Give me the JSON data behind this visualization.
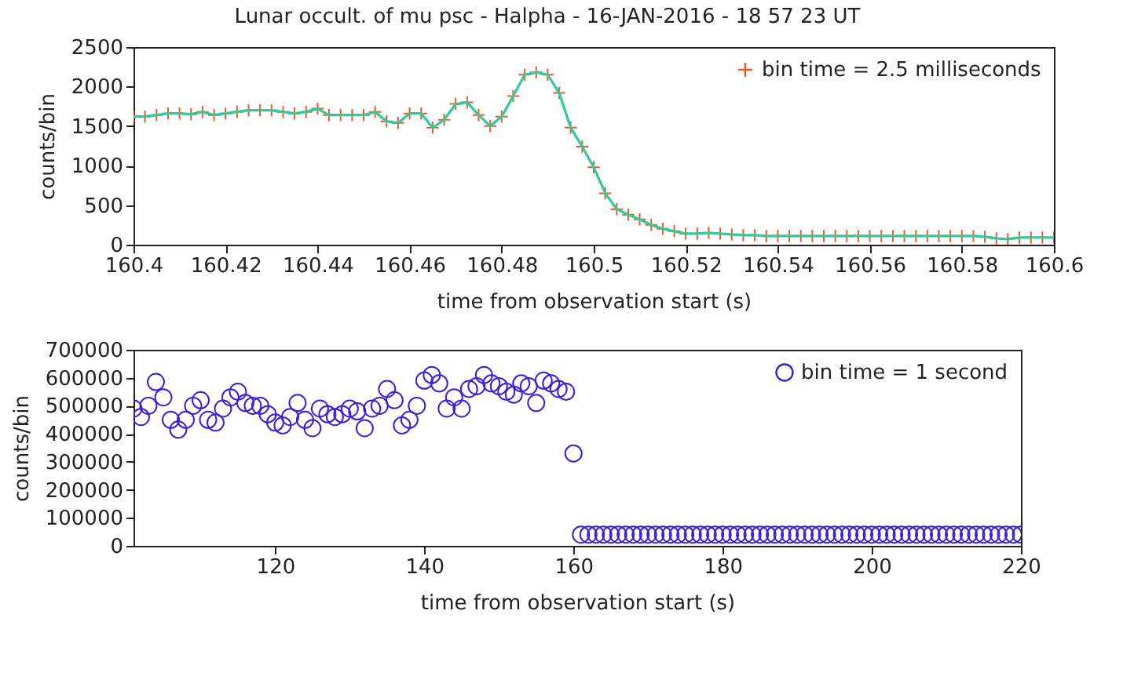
{
  "chart_data": [
    {
      "type": "scatter",
      "title": "Lunar occult. of mu psc - Halpha - 16-JAN-2016 - 18 57 23 UT",
      "xlabel": "time from observation start (s)",
      "ylabel": "counts/bin",
      "xlim": [
        160.4,
        160.6
      ],
      "xticks": [
        160.4,
        160.42,
        160.44,
        160.46,
        160.48,
        160.5,
        160.52,
        160.54,
        160.56,
        160.58,
        160.6
      ],
      "ylim": [
        0,
        2500
      ],
      "yticks": [
        0,
        500,
        1000,
        1500,
        2000,
        2500
      ],
      "legend": "top right",
      "series": [
        {
          "name": "bin time = 2.5 milliseconds",
          "type": "scatter",
          "marker": "cross",
          "color": "#f05a28",
          "x": [
            160.4,
            160.4025,
            160.405,
            160.4075,
            160.41,
            160.4125,
            160.415,
            160.4175,
            160.42,
            160.4225,
            160.425,
            160.4275,
            160.43,
            160.4325,
            160.435,
            160.4375,
            160.44,
            160.4425,
            160.445,
            160.4475,
            160.45,
            160.4525,
            160.455,
            160.4575,
            160.46,
            160.4625,
            160.465,
            160.4675,
            160.47,
            160.4725,
            160.475,
            160.4775,
            160.48,
            160.4825,
            160.485,
            160.4875,
            160.49,
            160.4925,
            160.495,
            160.4975,
            160.5,
            160.5025,
            160.505,
            160.5075,
            160.51,
            160.5125,
            160.515,
            160.5175,
            160.52,
            160.5225,
            160.525,
            160.5275,
            160.53,
            160.5325,
            160.535,
            160.5375,
            160.54,
            160.5425,
            160.545,
            160.5475,
            160.55,
            160.5525,
            160.555,
            160.5575,
            160.56,
            160.5625,
            160.565,
            160.5675,
            160.57,
            160.5725,
            160.575,
            160.5775,
            160.58,
            160.5825,
            160.585,
            160.5875,
            160.59,
            160.5925,
            160.595,
            160.5975,
            160.6
          ],
          "values": [
            1620,
            1620,
            1640,
            1660,
            1660,
            1650,
            1680,
            1640,
            1660,
            1680,
            1700,
            1700,
            1700,
            1680,
            1660,
            1680,
            1720,
            1640,
            1640,
            1640,
            1640,
            1680,
            1560,
            1540,
            1660,
            1660,
            1480,
            1580,
            1780,
            1800,
            1640,
            1500,
            1620,
            1880,
            2150,
            2180,
            2150,
            1920,
            1480,
            1240,
            980,
            650,
            450,
            380,
            320,
            250,
            200,
            170,
            140,
            140,
            150,
            140,
            130,
            120,
            120,
            110,
            110,
            110,
            110,
            110,
            110,
            110,
            110,
            110,
            110,
            110,
            110,
            110,
            110,
            110,
            110,
            110,
            110,
            110,
            100,
            80,
            70,
            90,
            90,
            90,
            90
          ]
        },
        {
          "type": "line",
          "marker": "none",
          "color": "#2ecc9a",
          "x": [
            160.4,
            160.4025,
            160.405,
            160.4075,
            160.41,
            160.4125,
            160.415,
            160.4175,
            160.42,
            160.4225,
            160.425,
            160.4275,
            160.43,
            160.4325,
            160.435,
            160.4375,
            160.44,
            160.4425,
            160.445,
            160.4475,
            160.45,
            160.4525,
            160.455,
            160.4575,
            160.46,
            160.4625,
            160.465,
            160.4675,
            160.47,
            160.4725,
            160.475,
            160.4775,
            160.48,
            160.4825,
            160.485,
            160.4875,
            160.49,
            160.4925,
            160.495,
            160.4975,
            160.5,
            160.5025,
            160.505,
            160.5075,
            160.51,
            160.5125,
            160.515,
            160.5175,
            160.52,
            160.5225,
            160.525,
            160.5275,
            160.53,
            160.5325,
            160.535,
            160.5375,
            160.54,
            160.5425,
            160.545,
            160.5475,
            160.55,
            160.5525,
            160.555,
            160.5575,
            160.56,
            160.5625,
            160.565,
            160.5675,
            160.57,
            160.5725,
            160.575,
            160.5775,
            160.58,
            160.5825,
            160.585,
            160.5875,
            160.59,
            160.5925,
            160.595,
            160.5975,
            160.6
          ],
          "values": [
            1620,
            1620,
            1640,
            1660,
            1660,
            1650,
            1680,
            1640,
            1660,
            1680,
            1700,
            1700,
            1700,
            1680,
            1660,
            1680,
            1720,
            1640,
            1640,
            1640,
            1640,
            1680,
            1560,
            1540,
            1660,
            1660,
            1480,
            1580,
            1780,
            1800,
            1640,
            1500,
            1620,
            1880,
            2150,
            2180,
            2150,
            1920,
            1480,
            1240,
            980,
            650,
            450,
            380,
            320,
            250,
            200,
            170,
            140,
            140,
            150,
            140,
            130,
            120,
            120,
            110,
            110,
            110,
            110,
            110,
            110,
            110,
            110,
            110,
            110,
            110,
            110,
            110,
            110,
            110,
            110,
            110,
            110,
            110,
            100,
            80,
            70,
            90,
            90,
            90,
            90
          ]
        }
      ]
    },
    {
      "type": "scatter",
      "xlabel": "time from observation start (s)",
      "ylabel": "counts/bin",
      "xlim": [
        101,
        220
      ],
      "xticks": [
        120,
        140,
        160,
        180,
        200,
        220
      ],
      "ylim": [
        0,
        700000
      ],
      "yticks": [
        0,
        100000,
        200000,
        300000,
        400000,
        500000,
        600000,
        700000
      ],
      "marker": "circle",
      "legend": "top right",
      "series": [
        {
          "name": "bin time = 1 second",
          "type": "scatter",
          "color": "#3b1fe0",
          "x": [
            101,
            102,
            103,
            104,
            105,
            106,
            107,
            108,
            109,
            110,
            111,
            112,
            113,
            114,
            115,
            116,
            117,
            118,
            119,
            120,
            121,
            122,
            123,
            124,
            125,
            126,
            127,
            128,
            129,
            130,
            131,
            132,
            133,
            134,
            135,
            136,
            137,
            138,
            139,
            140,
            141,
            142,
            143,
            144,
            145,
            146,
            147,
            148,
            149,
            150,
            151,
            152,
            153,
            154,
            155,
            156,
            157,
            158,
            159,
            160,
            161,
            162,
            163,
            164,
            165,
            166,
            167,
            168,
            169,
            170,
            171,
            172,
            173,
            174,
            175,
            176,
            177,
            178,
            179,
            180,
            181,
            182,
            183,
            184,
            185,
            186,
            187,
            188,
            189,
            190,
            191,
            192,
            193,
            194,
            195,
            196,
            197,
            198,
            199,
            200,
            201,
            202,
            203,
            204,
            205,
            206,
            207,
            208,
            209,
            210,
            211,
            212,
            213,
            214,
            215,
            216,
            217,
            218,
            219,
            220
          ],
          "values": [
            490000,
            460000,
            500000,
            585000,
            530000,
            450000,
            415000,
            450000,
            500000,
            520000,
            450000,
            440000,
            490000,
            530000,
            550000,
            510000,
            500000,
            500000,
            470000,
            440000,
            430000,
            460000,
            510000,
            450000,
            420000,
            490000,
            470000,
            460000,
            470000,
            490000,
            480000,
            420000,
            490000,
            500000,
            560000,
            520000,
            430000,
            450000,
            500000,
            590000,
            610000,
            580000,
            490000,
            530000,
            490000,
            560000,
            570000,
            610000,
            580000,
            570000,
            550000,
            540000,
            580000,
            570000,
            510000,
            590000,
            580000,
            560000,
            550000,
            330000,
            40000,
            40000,
            40000,
            40000,
            40000,
            40000,
            40000,
            40000,
            40000,
            40000,
            40000,
            40000,
            40000,
            40000,
            40000,
            40000,
            40000,
            40000,
            40000,
            40000,
            40000,
            40000,
            40000,
            40000,
            40000,
            40000,
            40000,
            40000,
            40000,
            40000,
            40000,
            40000,
            40000,
            40000,
            40000,
            40000,
            40000,
            40000,
            40000,
            40000,
            40000,
            40000,
            40000,
            40000,
            40000,
            40000,
            40000,
            40000,
            40000,
            40000,
            40000,
            40000,
            40000,
            40000,
            40000,
            40000,
            40000,
            40000,
            40000,
            40000
          ]
        }
      ]
    }
  ]
}
